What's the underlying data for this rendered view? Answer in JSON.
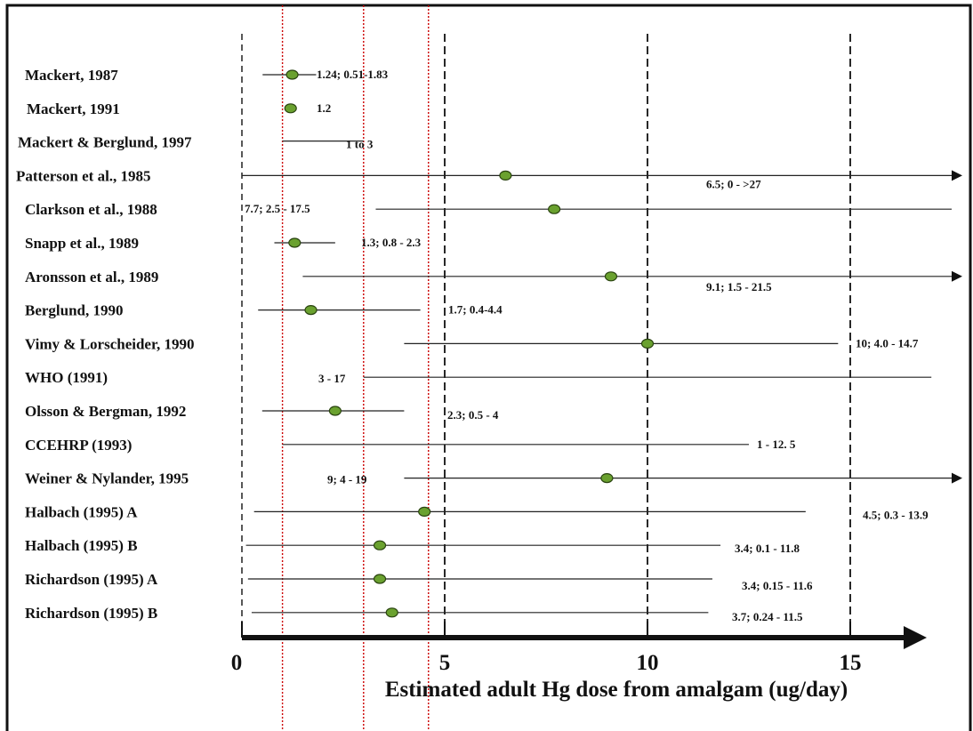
{
  "chart_data": {
    "type": "forest",
    "xlabel": "Estimated adult Hg dose from amalgam (ug/day)",
    "xticks": [
      "0",
      "5",
      "10",
      "15"
    ],
    "xlim": [
      0,
      17.5
    ],
    "reference_lines": [
      1,
      3,
      4.6
    ],
    "colors": {
      "point": "#6aa12f",
      "point_outline": "#2a4410",
      "reference": "#cc0000",
      "line": "#222222"
    },
    "studies": [
      {
        "label": "Mackert, 1987",
        "point": 1.24,
        "low": 0.51,
        "high": 1.83,
        "arrow": false,
        "value_text": "1.24; 0.51-1.83"
      },
      {
        "label": "Mackert, 1991",
        "point": 1.2,
        "low": null,
        "high": null,
        "arrow": false,
        "value_text": "1.2"
      },
      {
        "label": "Mackert & Berglund, 1997",
        "point": null,
        "low": 1,
        "high": 3,
        "arrow": false,
        "value_text": "1 to 3"
      },
      {
        "label": "Patterson et al., 1985",
        "point": 6.5,
        "low": 0,
        "high": 27,
        "arrow": true,
        "value_text": "6.5; 0 - >27"
      },
      {
        "label": "Clarkson et al., 1988",
        "point": 7.7,
        "low": 2.5,
        "high": 17.5,
        "arrow": false,
        "value_text": "7.7; 2.5 - 17.5"
      },
      {
        "label": "Snapp et al., 1989",
        "point": 1.3,
        "low": 0.8,
        "high": 2.3,
        "arrow": false,
        "value_text": "1.3; 0.8 - 2.3"
      },
      {
        "label": "Aronsson et al., 1989",
        "point": 9.1,
        "low": 1.5,
        "high": 21.5,
        "arrow": true,
        "value_text": "9.1; 1.5 - 21.5"
      },
      {
        "label": "Berglund, 1990",
        "point": 1.7,
        "low": 0.4,
        "high": 4.4,
        "arrow": false,
        "value_text": "1.7; 0.4-4.4"
      },
      {
        "label": "Vimy & Lorscheider, 1990",
        "point": 10,
        "low": 4.0,
        "high": 14.7,
        "arrow": false,
        "value_text": "10; 4.0 - 14.7"
      },
      {
        "label": "WHO (1991)",
        "point": null,
        "low": 3,
        "high": 17,
        "arrow": false,
        "value_text": "3 - 17"
      },
      {
        "label": "Olsson & Bergman, 1992",
        "point": 2.3,
        "low": 0.5,
        "high": 4,
        "arrow": false,
        "value_text": "2.3; 0.5 - 4"
      },
      {
        "label": "CCEHRP (1993)",
        "point": null,
        "low": 1,
        "high": 12.5,
        "arrow": false,
        "value_text": "1 - 12. 5"
      },
      {
        "label": "Weiner & Nylander, 1995",
        "point": 9,
        "low": 4,
        "high": 19,
        "arrow": true,
        "value_text": "9; 4 - 19"
      },
      {
        "label": "Halbach (1995) A",
        "point": 4.5,
        "low": 0.3,
        "high": 13.9,
        "arrow": false,
        "value_text": "4.5; 0.3 - 13.9"
      },
      {
        "label": "Halbach (1995) B",
        "point": 3.4,
        "low": 0.1,
        "high": 11.8,
        "arrow": false,
        "value_text": "3.4; 0.1 - 11.8"
      },
      {
        "label": "Richardson (1995) A",
        "point": 3.4,
        "low": 0.15,
        "high": 11.6,
        "arrow": false,
        "value_text": "3.4; 0.15 - 11.6"
      },
      {
        "label": "Richardson (1995) B",
        "point": 3.7,
        "low": 0.24,
        "high": 11.5,
        "arrow": false,
        "value_text": "3.7; 0.24 - 11.5"
      }
    ]
  }
}
